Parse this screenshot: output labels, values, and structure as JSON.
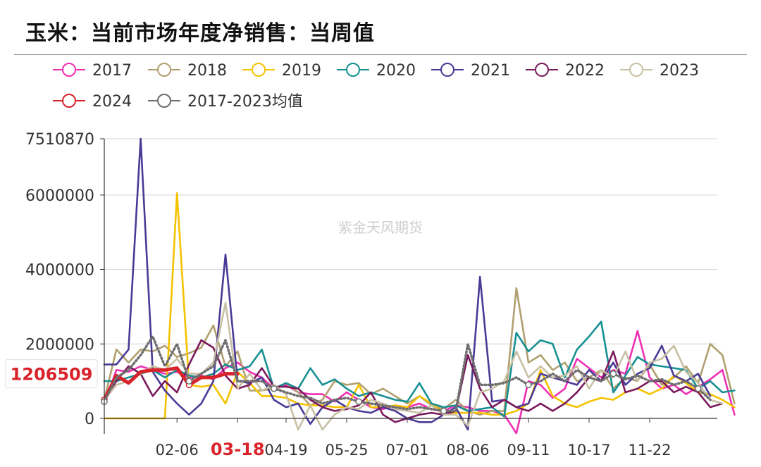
{
  "page": {
    "title": "玉米：当前市场年度净销售：当周值"
  },
  "chart_data": {
    "type": "line",
    "title": "玉米：当前市场年度净销售：当周值",
    "ylim": [
      0,
      7510870
    ],
    "y_ticks": [
      0,
      2000000,
      4000000,
      6000000,
      7510870
    ],
    "y_tick_labels": [
      "0",
      "2000000",
      "4000000",
      "6000000",
      "7510870"
    ],
    "x_tick_labels": [
      "02-06",
      "03-18",
      "04-19",
      "05-25",
      "07-01",
      "08-06",
      "09-11",
      "10-17",
      "11-22"
    ],
    "x_tick_weeks": [
      6,
      11,
      15,
      20,
      25,
      30,
      35,
      40,
      45
    ],
    "highlight_tick": "03-18",
    "highlight_color": "#d9232a",
    "current_value_label": "1206509",
    "watermark": "紫金天风期货",
    "grid": "horizontal",
    "legend_position": "top",
    "series": [
      {
        "name": "2017",
        "color": "#f02fb4",
        "style": "line",
        "values": [
          400000,
          1300000,
          1250000,
          1400000,
          1300000,
          1200000,
          1250000,
          1100000,
          1150000,
          1050000,
          1350000,
          1500000,
          1250000,
          1100000,
          800000,
          900000,
          700000,
          650000,
          650000,
          450000,
          700000,
          500000,
          300000,
          250000,
          350000,
          300000,
          400000,
          250000,
          200000,
          350000,
          300000,
          200000,
          200000,
          100000,
          -400000,
          1000000,
          900000,
          550000,
          800000,
          1600000,
          1350000,
          1100000,
          1300000,
          1200000,
          2350000,
          1100000,
          800000,
          900000,
          650000,
          850000,
          1050000,
          1300000,
          100000
        ]
      },
      {
        "name": "2018",
        "color": "#b0a070",
        "style": "line",
        "values": [
          500000,
          1850000,
          1500000,
          1850000,
          1800000,
          1950000,
          1650000,
          1750000,
          1900000,
          2500000,
          1400000,
          1800000,
          750000,
          750000,
          800000,
          950000,
          700000,
          350000,
          500000,
          1000000,
          900000,
          950000,
          650000,
          800000,
          600000,
          400000,
          600000,
          350000,
          250000,
          500000,
          200000,
          100000,
          200000,
          200000,
          3500000,
          1500000,
          1700000,
          1300000,
          1500000,
          1000000,
          1100000,
          1300000,
          800000,
          1100000,
          1000000,
          1450000,
          900000,
          1100000,
          1400000,
          950000,
          2000000,
          1700000,
          400000
        ]
      },
      {
        "name": "2019",
        "color": "#f5c200",
        "style": "line",
        "values": [
          0,
          0,
          0,
          0,
          0,
          0,
          6050000,
          900000,
          850000,
          900000,
          400000,
          1250000,
          950000,
          600000,
          600000,
          550000,
          400000,
          350000,
          350000,
          300000,
          300000,
          900000,
          300000,
          300000,
          350000,
          300000,
          600000,
          400000,
          150000,
          150000,
          150000,
          150000,
          100000,
          100000,
          200000,
          400000,
          1300000,
          600000,
          400000,
          300000,
          450000,
          550000,
          500000,
          700000,
          800000,
          650000,
          800000,
          1150000,
          950000,
          700000,
          650000,
          500000,
          300000
        ]
      },
      {
        "name": "2020",
        "color": "#169093",
        "style": "line",
        "values": [
          1000000,
          1000000,
          1100000,
          1200000,
          1300000,
          1100000,
          1300000,
          1150000,
          1100000,
          1200000,
          1450000,
          1300000,
          1400000,
          1850000,
          800000,
          950000,
          800000,
          1350000,
          900000,
          1050000,
          800000,
          600000,
          700000,
          600000,
          500000,
          450000,
          950000,
          400000,
          300000,
          350000,
          200000,
          250000,
          300000,
          50000,
          2300000,
          1800000,
          2100000,
          2000000,
          1100000,
          1850000,
          2200000,
          2600000,
          700000,
          1150000,
          1650000,
          1450000,
          1400000,
          1350000,
          1300000,
          800000,
          1000000,
          700000,
          750000
        ]
      },
      {
        "name": "2021",
        "color": "#4a3a96",
        "style": "line",
        "values": [
          1450000,
          1450000,
          1850000,
          7510870,
          1250000,
          750000,
          400000,
          100000,
          400000,
          1000000,
          4400000,
          1000000,
          950000,
          1100000,
          500000,
          300000,
          400000,
          -150000,
          300000,
          500000,
          300000,
          200000,
          150000,
          300000,
          200000,
          0,
          -100000,
          -100000,
          100000,
          300000,
          -300000,
          3800000,
          450000,
          500000,
          300000,
          400000,
          1200000,
          1100000,
          1000000,
          900000,
          1300000,
          1000000,
          1500000,
          900000,
          1200000,
          1350000,
          1950000,
          1150000,
          1000000,
          1200000,
          600000
        ]
      },
      {
        "name": "2022",
        "color": "#7a1a5c",
        "style": "line",
        "values": [
          500000,
          1000000,
          1400000,
          1200000,
          600000,
          1000000,
          700000,
          1450000,
          2100000,
          1900000,
          1150000,
          800000,
          900000,
          1350000,
          850000,
          850000,
          800000,
          500000,
          300000,
          200000,
          250000,
          350000,
          700000,
          100000,
          -100000,
          0,
          100000,
          150000,
          100000,
          200000,
          1700000,
          800000,
          300000,
          500000,
          300000,
          200000,
          400000,
          200000,
          400000,
          700000,
          1100000,
          1000000,
          1800000,
          700000,
          800000,
          1000000,
          1000000,
          700000,
          850000,
          700000,
          300000,
          400000
        ]
      },
      {
        "name": "2023",
        "color": "#c8c0a4",
        "style": "line",
        "values": [
          500000,
          900000,
          1000000,
          1200000,
          1400000,
          1300000,
          1600000,
          1200000,
          1200000,
          1500000,
          3100000,
          800000,
          1200000,
          750000,
          900000,
          650000,
          -300000,
          350000,
          -300000,
          100000,
          300000,
          250000,
          500000,
          400000,
          250000,
          200000,
          150000,
          350000,
          100000,
          100000,
          -200000,
          700000,
          800000,
          1000000,
          1800000,
          1100000,
          1400000,
          1100000,
          1150000,
          1400000,
          800000,
          1300000,
          1100000,
          1800000,
          1000000,
          1500000,
          1600000,
          1950000,
          1250000,
          950000,
          500000,
          400000
        ]
      },
      {
        "name": "2024",
        "color": "#d9232a",
        "style": "line",
        "width": 5,
        "values": [
          500000,
          1150000,
          950000,
          1250000,
          1300000,
          1300000,
          1350000,
          900000,
          1100000,
          1100000,
          1200000,
          1200000
        ]
      },
      {
        "name": "2017-2023均值",
        "color": "#6e6e6e",
        "style": "dotted",
        "values": [
          450000,
          1100000,
          1300000,
          1700000,
          2200000,
          1400000,
          2000000,
          1000000,
          1200000,
          1400000,
          2100000,
          1000000,
          1000000,
          1000000,
          800000,
          700000,
          600000,
          550000,
          400000,
          500000,
          550000,
          450000,
          400000,
          350000,
          300000,
          250000,
          300000,
          250000,
          200000,
          200000,
          2000000,
          900000,
          900000,
          950000,
          1100000,
          900000,
          1000000,
          1200000,
          1000000,
          1300000,
          1100000,
          1000000,
          1200000,
          1050000,
          1150000,
          1000000,
          1050000,
          900000,
          1000000,
          800000,
          500000
        ]
      }
    ]
  }
}
